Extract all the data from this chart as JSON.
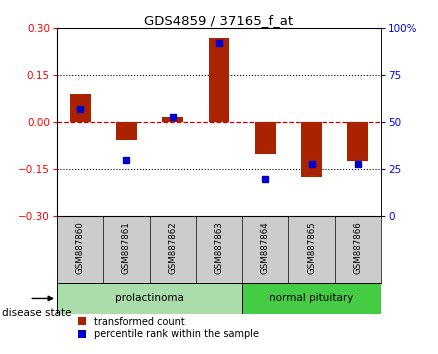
{
  "title": "GDS4859 / 37165_f_at",
  "samples": [
    "GSM887860",
    "GSM887861",
    "GSM887862",
    "GSM887863",
    "GSM887864",
    "GSM887865",
    "GSM887866"
  ],
  "transformed_count": [
    0.09,
    -0.055,
    0.018,
    0.27,
    -0.1,
    -0.175,
    -0.125
  ],
  "percentile_rank": [
    57,
    30,
    53,
    92,
    20,
    28,
    28
  ],
  "groups": [
    {
      "label": "prolactinoma",
      "indices": [
        0,
        1,
        2,
        3
      ],
      "color": "#aaddaa"
    },
    {
      "label": "normal pituitary",
      "indices": [
        4,
        5,
        6
      ],
      "color": "#44cc44"
    }
  ],
  "ylim_left": [
    -0.3,
    0.3
  ],
  "ylim_right": [
    0,
    100
  ],
  "yticks_left": [
    -0.3,
    -0.15,
    0,
    0.15,
    0.3
  ],
  "yticks_right": [
    0,
    25,
    50,
    75,
    100
  ],
  "bar_color_red": "#aa2200",
  "bar_color_blue": "#0000cc",
  "hline_color": "#cc0000",
  "background_label": "#cccccc",
  "bar_width": 0.45
}
